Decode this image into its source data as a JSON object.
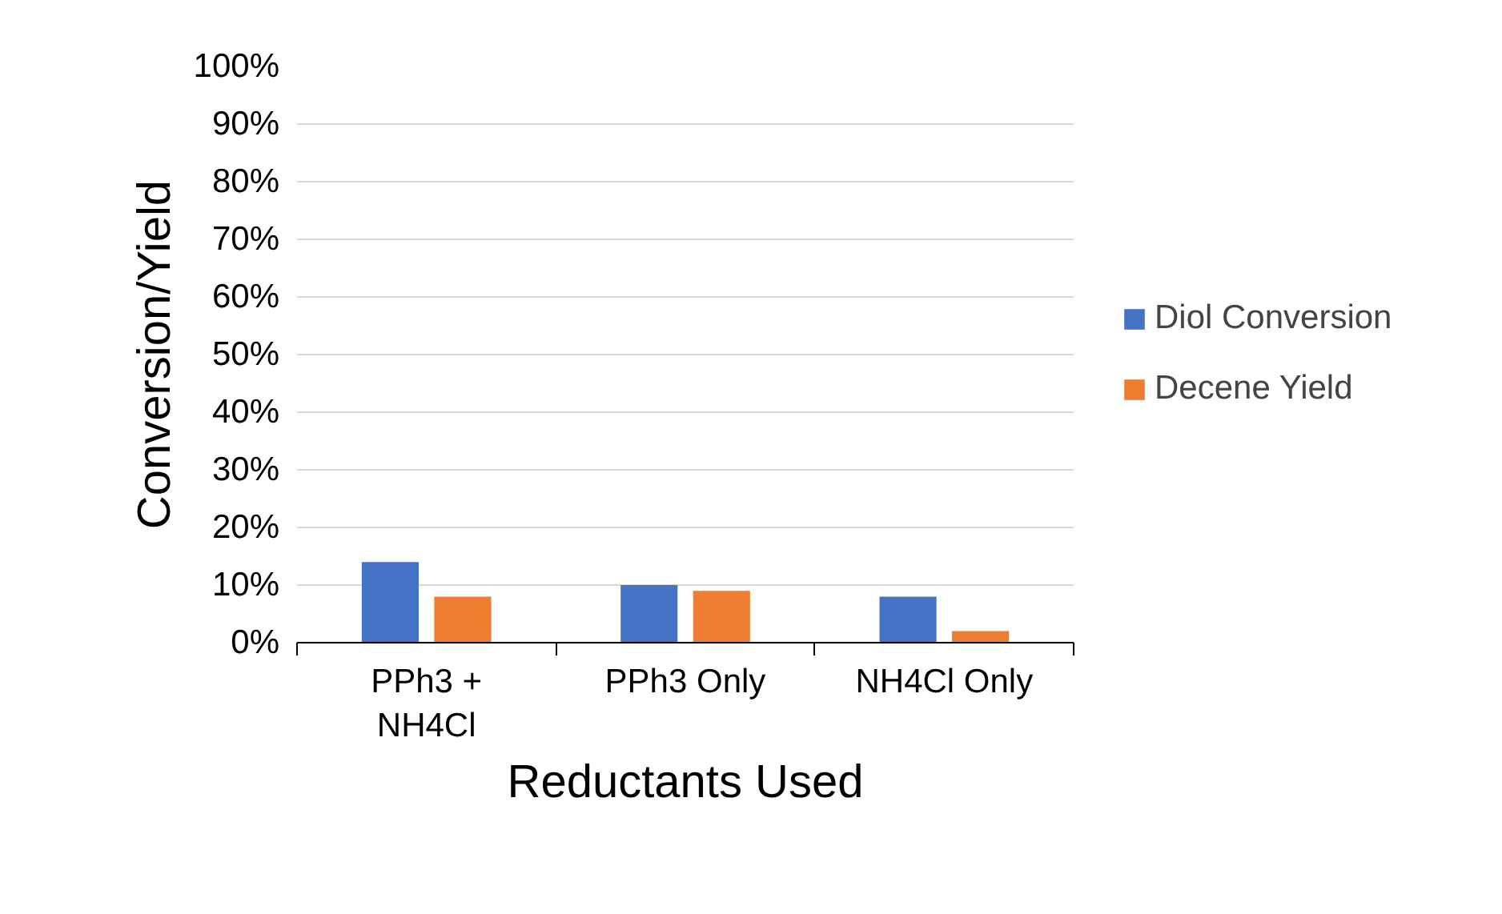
{
  "chart_data": {
    "type": "bar",
    "xlabel": "Reductants Used",
    "ylabel": "Conversion/Yield",
    "categories": [
      "PPh3 + NH4Cl",
      "PPh3 Only",
      "NH4Cl Only"
    ],
    "series": [
      {
        "name": "Diol Conversion",
        "color": "#4472c4",
        "values": [
          14,
          10,
          8
        ]
      },
      {
        "name": "Decene Yield",
        "color": "#ed7d31",
        "values": [
          8,
          9,
          2
        ]
      }
    ],
    "ylim": [
      0,
      100
    ],
    "yticks": [
      {
        "value": 0,
        "label": "0%"
      },
      {
        "value": 10,
        "label": "10%"
      },
      {
        "value": 20,
        "label": "20%"
      },
      {
        "value": 30,
        "label": "30%"
      },
      {
        "value": 40,
        "label": "40%"
      },
      {
        "value": 50,
        "label": "50%"
      },
      {
        "value": 60,
        "label": "60%"
      },
      {
        "value": 70,
        "label": "70%"
      },
      {
        "value": 80,
        "label": "80%"
      },
      {
        "value": 90,
        "label": "90%"
      },
      {
        "value": 100,
        "label": "100%"
      }
    ],
    "grid": "y",
    "legend": "right"
  }
}
